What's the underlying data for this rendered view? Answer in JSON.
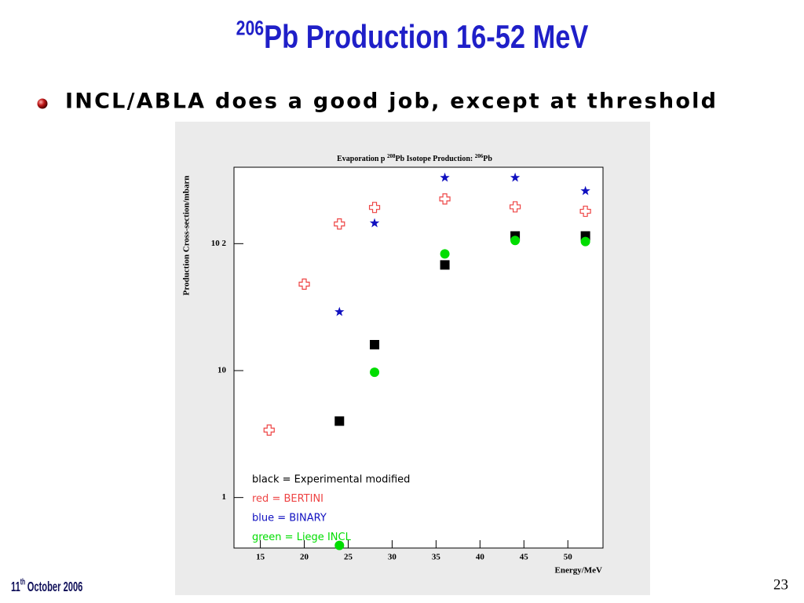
{
  "slide": {
    "title": {
      "superscript": "206",
      "text": "Pb Production 16-52 MeV"
    },
    "bullet": "INCL/ABLA does a good job, except at threshold",
    "footer": {
      "date": {
        "day": "11",
        "suffix": "th",
        "rest": "October 2006"
      },
      "page": "23"
    }
  },
  "chart_data": {
    "type": "scatter",
    "title": {
      "parts": [
        "Evaporation p ",
        "208",
        "Pb Isotope Production: ",
        "206",
        "Pb"
      ]
    },
    "xlabel": "Energy/MeV",
    "ylabel": "Production Cross-section/mbarn",
    "log_y": true,
    "grid": false,
    "legend": "lower left",
    "xlim": [
      12,
      54
    ],
    "xticks": [
      15,
      20,
      25,
      30,
      35,
      40,
      45,
      50
    ],
    "ylim": [
      0.4,
      400
    ],
    "yticks": [
      1,
      10,
      {
        "value": 100,
        "label": "10 2"
      }
    ],
    "series": [
      {
        "name": "black = Experimental modified",
        "color": "#000000",
        "marker": "square",
        "x": [
          24,
          28,
          36,
          44,
          52
        ],
        "values": [
          4.0,
          16,
          68,
          115,
          115
        ]
      },
      {
        "name": "red = BERTINI",
        "color": "#ee4444",
        "marker": "cross",
        "x": [
          16,
          20,
          24,
          28,
          36,
          44,
          52
        ],
        "values": [
          3.4,
          48,
          143,
          193,
          225,
          195,
          180
        ]
      },
      {
        "name": "blue = BINARY",
        "color": "#1010c0",
        "marker": "star",
        "x": [
          24,
          28,
          36,
          44,
          52
        ],
        "values": [
          29,
          145,
          331,
          331,
          260
        ]
      },
      {
        "name": "green = Liege INCL",
        "color": "#00dd00",
        "marker": "circle",
        "x": [
          24,
          28,
          36,
          44,
          52
        ],
        "values": [
          0.42,
          9.7,
          83,
          106,
          104
        ]
      }
    ]
  }
}
